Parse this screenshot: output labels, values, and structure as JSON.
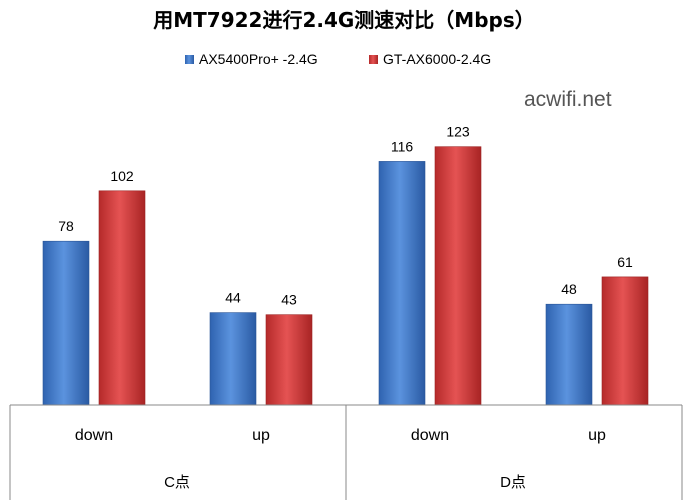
{
  "chart_data": {
    "type": "bar",
    "title": "用MT7922进行2.4G测速对比（Mbps）",
    "watermark": "acwifi.net",
    "groups": [
      {
        "label": "C点",
        "categories": [
          "down",
          "up"
        ]
      },
      {
        "label": "D点",
        "categories": [
          "down",
          "up"
        ]
      }
    ],
    "categories": [
      "down",
      "up",
      "down",
      "up"
    ],
    "series": [
      {
        "name": "AX5400Pro+ -2.4G",
        "color": "#4a7fcb",
        "values": [
          78,
          44,
          116,
          48
        ]
      },
      {
        "name": "GT-AX6000-2.4G",
        "color": "#d43c3c",
        "values": [
          102,
          43,
          123,
          61
        ]
      }
    ],
    "ylim": [
      0,
      140
    ],
    "grid": false,
    "legend_position": "top-center"
  }
}
